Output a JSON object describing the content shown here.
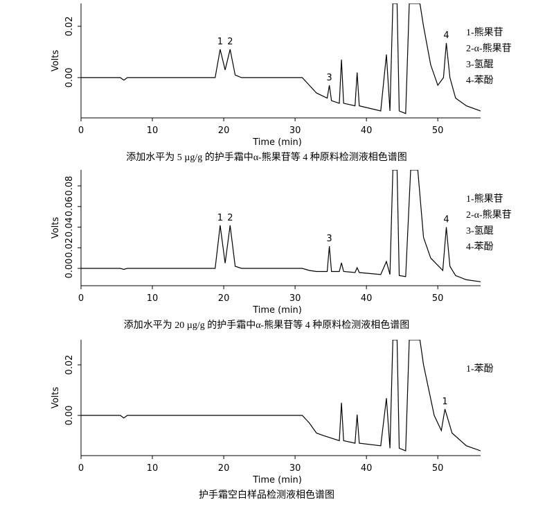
{
  "chart_data": [
    {
      "type": "line",
      "xlabel": "Time (min)",
      "ylabel": "Volts",
      "caption": "添加水平为 5 µg/g 的护手霜中α-熊果苷等 4 种原料检测液相色谱图",
      "xlim": [
        0,
        56
      ],
      "xticks": [
        0,
        10,
        20,
        30,
        40,
        50
      ],
      "ylim": [
        -0.0157,
        0.0289
      ],
      "yticks": [
        {
          "value": 0,
          "label": "0.00"
        },
        {
          "value": 0.02,
          "label": "0.02"
        }
      ],
      "color": "#000000",
      "x": [
        0,
        5.5,
        6,
        6.5,
        10,
        18.8,
        19.5,
        20.2,
        20.9,
        21.6,
        22.5,
        31,
        32,
        33,
        34.5,
        34.8,
        35.1,
        36.2,
        36.5,
        36.8,
        38.4,
        38.7,
        39,
        42,
        42.8,
        43.3,
        43.7,
        44.3,
        44.6,
        45.5,
        46,
        47.5,
        48,
        49,
        50,
        50.8,
        51.2,
        51.7,
        52.5,
        54,
        56
      ],
      "values": [
        0,
        0,
        -0.001,
        0,
        0,
        0,
        0.011,
        0.003,
        0.011,
        0.001,
        0,
        0,
        -0.003,
        -0.006,
        -0.008,
        -0.003,
        -0.009,
        -0.01,
        0.007,
        -0.01,
        -0.011,
        0.002,
        -0.011,
        -0.013,
        0.009,
        -0.013,
        0.0289,
        0.0289,
        -0.013,
        -0.014,
        0.0289,
        0.0289,
        0.02,
        0.005,
        -0.003,
        0,
        0.0135,
        0,
        -0.008,
        -0.011,
        -0.013
      ],
      "peak_labels": [
        {
          "text": "1",
          "x": 19.5,
          "y": 0.011
        },
        {
          "text": "2",
          "x": 20.9,
          "y": 0.011
        },
        {
          "text": "3",
          "x": 34.8,
          "y": -0.003
        },
        {
          "text": "4",
          "x": 51.2,
          "y": 0.0135
        }
      ],
      "legend_text": [
        "1-熊果苷",
        "2-α-熊果苷",
        "3-氢醌",
        "4-苯酚"
      ]
    },
    {
      "type": "line",
      "xlabel": "Time (min)",
      "ylabel": "Volts",
      "caption": "添加水平为 20 µg/g 的护手霜中α-熊果苷等 4 种原料检测液相色谱图",
      "xlim": [
        0,
        56
      ],
      "xticks": [
        0,
        10,
        20,
        30,
        40,
        50
      ],
      "ylim": [
        -0.0168,
        0.0955
      ],
      "yticks": [
        {
          "value": 0,
          "label": "0.00"
        },
        {
          "value": 0.02,
          "label": "0.02"
        },
        {
          "value": 0.04,
          "label": "0.04"
        },
        {
          "value": 0.06,
          "label": "0.06"
        },
        {
          "value": 0.08,
          "label": "0.08"
        }
      ],
      "color": "#000000",
      "x": [
        0,
        5.5,
        6,
        6.5,
        10,
        18.8,
        19.5,
        20.2,
        20.9,
        21.6,
        22.5,
        31,
        32,
        33,
        34.5,
        34.8,
        35.1,
        36.2,
        36.5,
        36.8,
        38.4,
        38.7,
        39,
        42,
        42.8,
        43.3,
        43.7,
        44.3,
        44.6,
        45.5,
        46.2,
        47.2,
        48,
        49,
        50.7,
        51.2,
        51.7,
        52.5,
        54,
        56
      ],
      "values": [
        0,
        0,
        -0.001,
        0,
        0,
        0,
        0.0417,
        0.005,
        0.0417,
        0.002,
        0,
        0,
        -0.002,
        -0.003,
        -0.003,
        0.0215,
        -0.003,
        -0.003,
        0.0054,
        -0.003,
        -0.004,
        0.0007,
        -0.004,
        -0.006,
        0.0067,
        -0.006,
        0.0955,
        0.0955,
        -0.007,
        -0.008,
        0.0955,
        0.0955,
        0.03,
        0.01,
        -0.002,
        0.04,
        0.002,
        -0.007,
        -0.011,
        -0.013
      ],
      "peak_labels": [
        {
          "text": "1",
          "x": 19.5,
          "y": 0.0417
        },
        {
          "text": "2",
          "x": 20.9,
          "y": 0.0417
        },
        {
          "text": "3",
          "x": 34.8,
          "y": 0.0215
        },
        {
          "text": "4",
          "x": 51.2,
          "y": 0.04
        }
      ],
      "legend_text": [
        "1-熊果苷",
        "2-α-熊果苷",
        "3-氢醌",
        "4-苯酚"
      ]
    },
    {
      "type": "line",
      "xlabel": "Time (min)",
      "ylabel": "Volts",
      "caption": "护手霜空白样品检测液相色谱图",
      "xlim": [
        0,
        56
      ],
      "xticks": [
        0,
        10,
        20,
        30,
        40,
        50
      ],
      "ylim": [
        -0.0159,
        0.0299
      ],
      "yticks": [
        {
          "value": 0,
          "label": "0.00"
        },
        {
          "value": 0.02,
          "label": "0.02"
        }
      ],
      "color": "#000000",
      "x": [
        0,
        5.5,
        6,
        6.5,
        10,
        31,
        32,
        33,
        34,
        36.2,
        36.5,
        36.8,
        38.4,
        38.7,
        39,
        42,
        42.8,
        43.3,
        43.7,
        44.3,
        44.6,
        45.5,
        46,
        47.5,
        48,
        49.5,
        50.5,
        51,
        52,
        54,
        56
      ],
      "values": [
        0,
        0,
        -0.001,
        0,
        0,
        0,
        -0.003,
        -0.007,
        -0.008,
        -0.01,
        0.005,
        -0.01,
        -0.011,
        0.0003,
        -0.011,
        -0.012,
        0.0068,
        -0.013,
        0.0299,
        0.0299,
        -0.013,
        -0.014,
        0.0299,
        0.0299,
        0.02,
        0,
        -0.006,
        0.0025,
        -0.007,
        -0.012,
        -0.014
      ],
      "peak_labels": [
        {
          "text": "1",
          "x": 51,
          "y": 0.0025
        }
      ],
      "legend_text": [
        "1-苯酚"
      ]
    }
  ]
}
